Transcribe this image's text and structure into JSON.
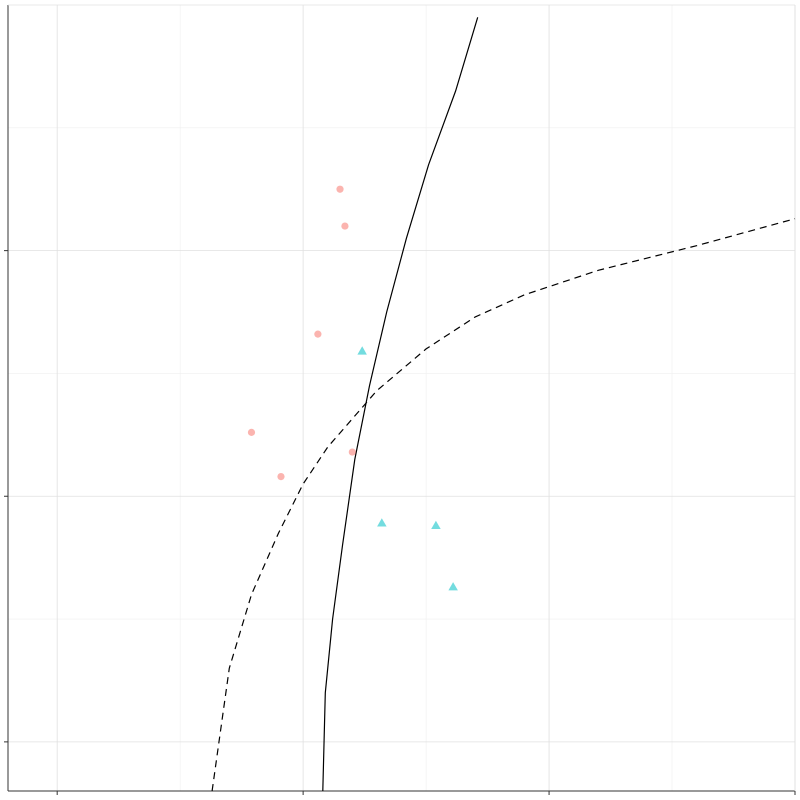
{
  "chart_data": {
    "type": "scatter",
    "title": "",
    "xlabel": "",
    "ylabel": "",
    "xlim": [
      -4,
      28
    ],
    "ylim": [
      -2,
      30
    ],
    "grid": true,
    "legend": "none",
    "x_ticks": [
      -2,
      8,
      18,
      28
    ],
    "y_ticks": [
      0,
      10,
      20
    ],
    "series": [
      {
        "marker": "circle",
        "color": "#F8766D",
        "points": [
          {
            "x": 9.5,
            "y": 22.5
          },
          {
            "x": 9.7,
            "y": 21.0
          },
          {
            "x": 8.6,
            "y": 16.6
          },
          {
            "x": 5.9,
            "y": 12.6
          },
          {
            "x": 7.1,
            "y": 10.8
          },
          {
            "x": 10.0,
            "y": 11.8
          }
        ]
      },
      {
        "marker": "triangle",
        "color": "#00BFC4",
        "points": [
          {
            "x": 10.4,
            "y": 15.9
          },
          {
            "x": 11.2,
            "y": 8.9
          },
          {
            "x": 13.4,
            "y": 8.8
          },
          {
            "x": 14.1,
            "y": 6.3
          }
        ]
      }
    ],
    "curves": [
      {
        "line_style": "solid",
        "points": [
          {
            "x": 8.8,
            "y": -2.0
          },
          {
            "x": 8.9,
            "y": 2.0
          },
          {
            "x": 9.2,
            "y": 5.0
          },
          {
            "x": 9.6,
            "y": 8.0
          },
          {
            "x": 10.1,
            "y": 11.5
          },
          {
            "x": 10.7,
            "y": 14.5
          },
          {
            "x": 11.4,
            "y": 17.5
          },
          {
            "x": 12.2,
            "y": 20.5
          },
          {
            "x": 13.1,
            "y": 23.5
          },
          {
            "x": 14.2,
            "y": 26.5
          },
          {
            "x": 15.1,
            "y": 29.5
          }
        ]
      },
      {
        "line_style": "dashed",
        "points": [
          {
            "x": 4.3,
            "y": -2.0
          },
          {
            "x": 5.0,
            "y": 3.0
          },
          {
            "x": 5.9,
            "y": 6.0
          },
          {
            "x": 7.0,
            "y": 8.5
          },
          {
            "x": 8.0,
            "y": 10.5
          },
          {
            "x": 9.0,
            "y": 12.0
          },
          {
            "x": 11.0,
            "y": 14.3
          },
          {
            "x": 13.0,
            "y": 16.0
          },
          {
            "x": 15.0,
            "y": 17.3
          },
          {
            "x": 17.0,
            "y": 18.2
          },
          {
            "x": 20.0,
            "y": 19.2
          },
          {
            "x": 24.0,
            "y": 20.2
          },
          {
            "x": 28.0,
            "y": 21.3
          }
        ]
      }
    ]
  }
}
